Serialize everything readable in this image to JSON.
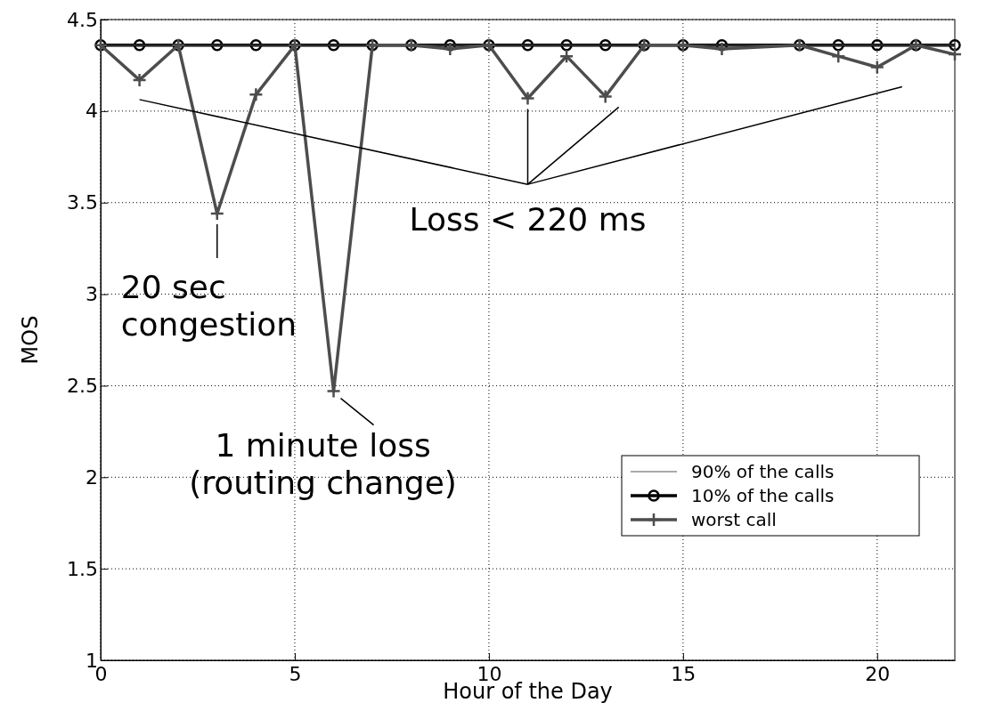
{
  "chart_data": {
    "type": "line",
    "xlabel": "Hour of the Day",
    "ylabel": "MOS",
    "x": [
      0,
      1,
      2,
      3,
      4,
      5,
      6,
      7,
      8,
      9,
      10,
      11,
      12,
      13,
      14,
      15,
      16,
      18,
      19,
      20,
      21,
      22
    ],
    "xlim": [
      0,
      22
    ],
    "xticks": [
      0,
      5,
      10,
      15,
      20
    ],
    "ylim": [
      1,
      4.5
    ],
    "yticks": [
      1,
      1.5,
      2,
      2.5,
      3,
      3.5,
      4,
      4.5
    ],
    "grid": true,
    "legend": "bottom right",
    "series": [
      {
        "name": "90% of the calls",
        "color": "#555555",
        "marker": "none",
        "values": [
          4.36,
          4.36,
          4.36,
          4.36,
          4.36,
          4.36,
          4.36,
          4.36,
          4.36,
          4.36,
          4.36,
          4.36,
          4.36,
          4.36,
          4.36,
          4.36,
          4.36,
          4.36,
          4.36,
          4.36,
          4.36,
          4.36
        ]
      },
      {
        "name": "10% of the calls",
        "color": "#000000",
        "marker": "circle",
        "values": [
          4.36,
          4.36,
          4.36,
          4.36,
          4.36,
          4.36,
          4.36,
          4.36,
          4.36,
          4.36,
          4.36,
          4.36,
          4.36,
          4.36,
          4.36,
          4.36,
          4.36,
          4.36,
          4.36,
          4.36,
          4.36,
          4.36
        ]
      },
      {
        "name": "worst call",
        "color": "#4d4d4d",
        "marker": "cross",
        "values": [
          4.36,
          4.17,
          4.36,
          3.44,
          4.09,
          4.36,
          2.47,
          4.36,
          4.36,
          4.34,
          4.36,
          4.07,
          4.3,
          4.08,
          4.36,
          4.36,
          4.34,
          4.36,
          4.3,
          4.24,
          4.36,
          4.31
        ]
      }
    ],
    "annotations": [
      {
        "text": "20 sec\ncongestion",
        "x": 3,
        "y": 3.44
      },
      {
        "text": "1 minute loss\n(routing change)",
        "x": 6,
        "y": 2.47
      },
      "Loss < 220 ms"
    ]
  }
}
